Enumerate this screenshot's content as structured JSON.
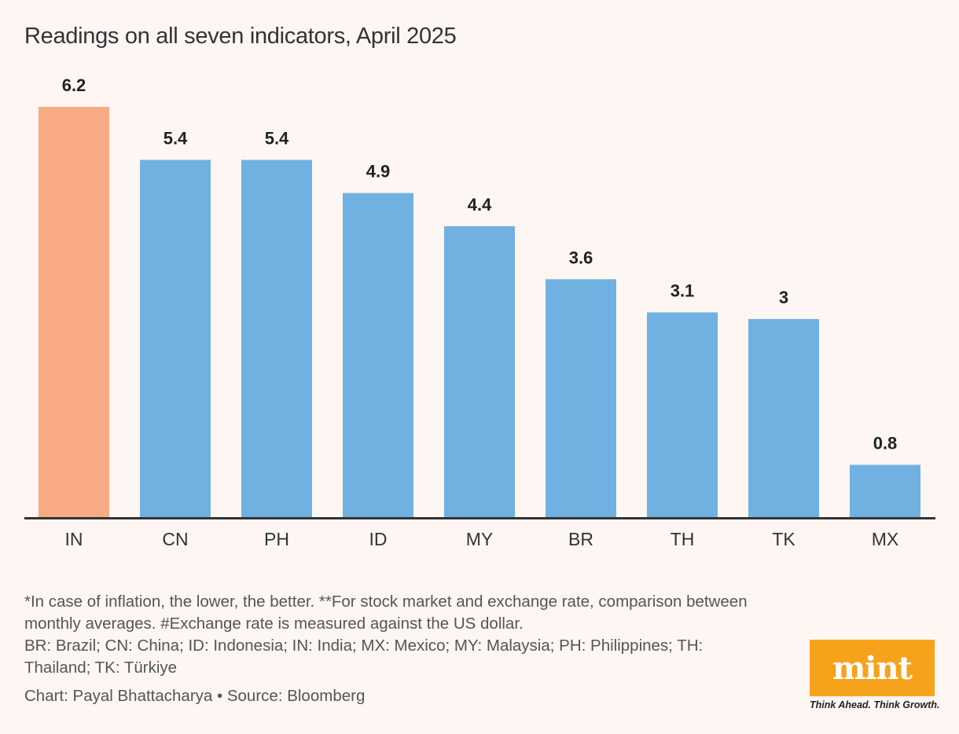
{
  "chart_data": {
    "type": "bar",
    "title": "Readings on all seven indicators, April 2025",
    "xlabel": "",
    "ylabel": "",
    "categories": [
      "IN",
      "CN",
      "PH",
      "ID",
      "MY",
      "BR",
      "TH",
      "TK",
      "MX"
    ],
    "values": [
      6.2,
      5.4,
      5.4,
      4.9,
      4.4,
      3.6,
      3.1,
      3,
      0.8
    ],
    "value_labels": [
      "6.2",
      "5.4",
      "5.4",
      "4.9",
      "4.4",
      "3.6",
      "3.1",
      "3",
      "0.8"
    ],
    "highlight_category": "IN",
    "colors": {
      "highlight": "#f7aa84",
      "default": "#70b1e1",
      "axis": "#333333"
    },
    "ylim": [
      0,
      6.2
    ],
    "grid": false,
    "legend": "none"
  },
  "footnotes": {
    "line1": "*In case of inflation, the lower, the better. **For stock market and exchange rate, comparison between monthly averages. #Exchange rate is measured against the US dollar.",
    "line2": "BR: Brazil; CN: China; ID: Indonesia; IN: India; MX: Mexico; MY: Malaysia; PH: Philippines; TH: Thailand; TK: Türkiye"
  },
  "credit": "Chart: Payal Bhattacharya • Source: Bloomberg",
  "logo": {
    "word": "mint",
    "tagline": "Think Ahead. Think Growth.",
    "color": "#f7a21b"
  }
}
